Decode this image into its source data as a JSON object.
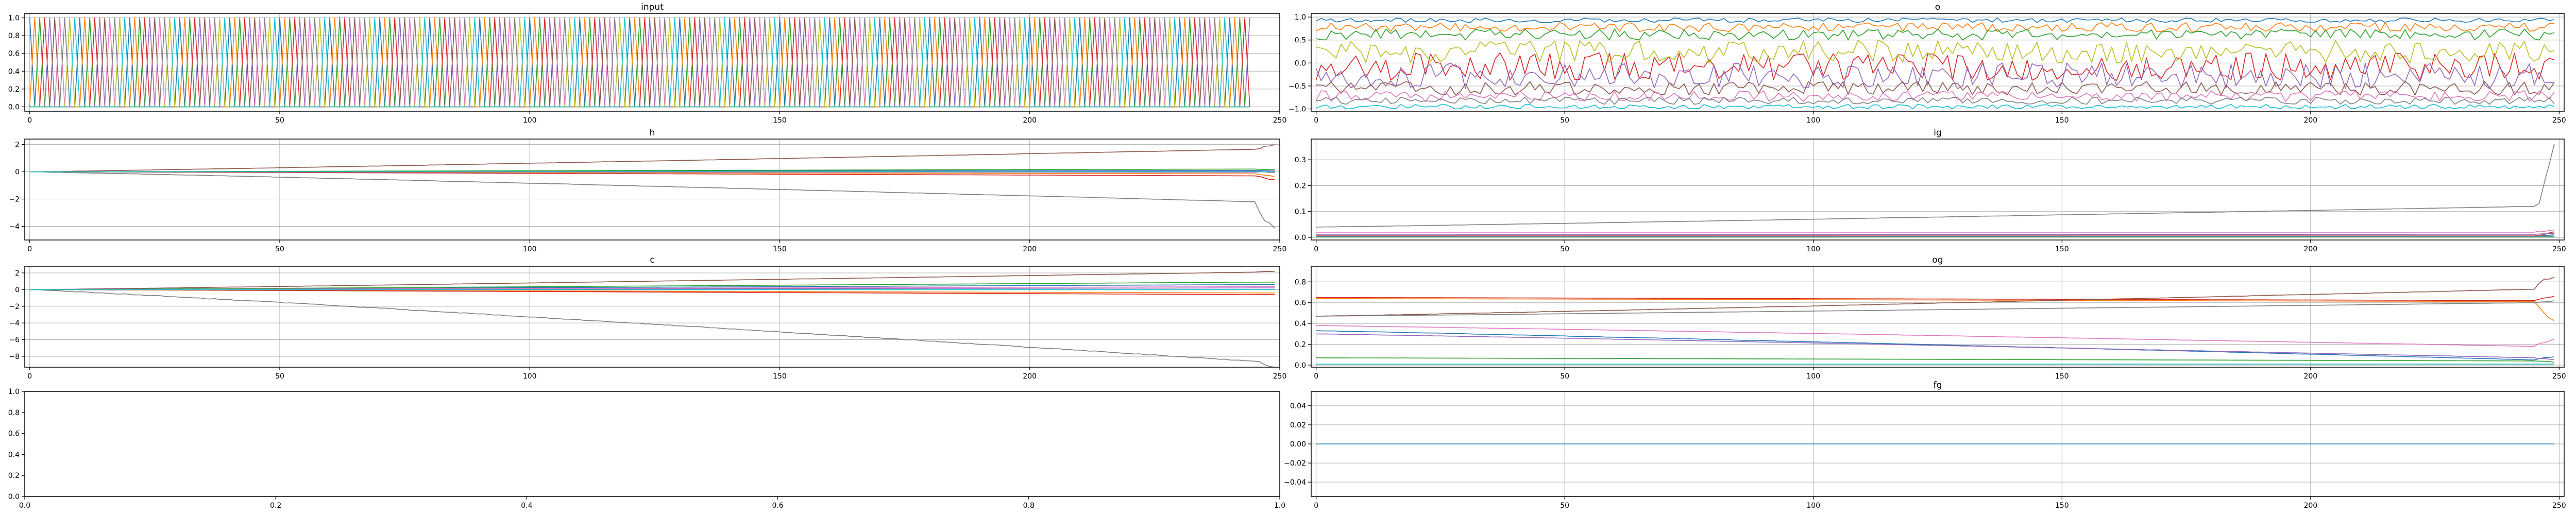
{
  "chart_data": [
    {
      "type": "line",
      "title": "input",
      "xlim": [
        -1,
        250
      ],
      "ylim": [
        -0.05,
        1.05
      ],
      "xticks": [
        "0",
        "50",
        "100",
        "150",
        "200",
        "250"
      ],
      "xtick_values": [
        0,
        50,
        100,
        150,
        200,
        250
      ],
      "yticks": [
        "0.0",
        "0.2",
        "0.4",
        "0.6",
        "0.8",
        "1.0"
      ],
      "ytick_values": [
        0,
        0.2,
        0.4,
        0.6,
        0.8,
        1.0
      ],
      "grid": true,
      "pattern": "binary",
      "n_series": 10,
      "n_points": 245,
      "series_colors": [
        "#1f77b4",
        "#ff7f0e",
        "#2ca02c",
        "#d62728",
        "#9467bd",
        "#8c564b",
        "#e377c2",
        "#7f7f7f",
        "#bcbd22",
        "#17becf"
      ]
    },
    {
      "type": "line",
      "title": "o",
      "xlim": [
        -1,
        251
      ],
      "ylim": [
        -1.05,
        1.08
      ],
      "xticks": [
        "0",
        "50",
        "100",
        "150",
        "200",
        "250"
      ],
      "xtick_values": [
        0,
        50,
        100,
        150,
        200,
        250
      ],
      "yticks": [
        "−1.0",
        "−0.5",
        "0.0",
        "0.5",
        "1.0"
      ],
      "ytick_values": [
        -1.0,
        -0.5,
        0.0,
        0.5,
        1.0
      ],
      "grid": true,
      "pattern": "noisy",
      "n_points": 250,
      "series_colors": [
        "#1f77b4",
        "#ff7f0e",
        "#2ca02c",
        "#d62728",
        "#9467bd",
        "#8c564b",
        "#e377c2",
        "#7f7f7f",
        "#bcbd22",
        "#17becf"
      ],
      "series_levels": [
        0.93,
        0.78,
        0.62,
        -0.08,
        -0.28,
        -0.55,
        -0.72,
        -0.82,
        0.25,
        -0.95
      ],
      "series_amplitudes": [
        0.05,
        0.1,
        0.12,
        0.3,
        0.28,
        0.15,
        0.12,
        0.08,
        0.25,
        0.05
      ]
    },
    {
      "type": "line",
      "title": "h",
      "xlim": [
        -1,
        250
      ],
      "ylim": [
        -5.0,
        2.4
      ],
      "xticks": [
        "0",
        "50",
        "100",
        "150",
        "200",
        "250"
      ],
      "xtick_values": [
        0,
        50,
        100,
        150,
        200,
        250
      ],
      "yticks": [
        "−4",
        "−2",
        "0",
        "2"
      ],
      "ytick_values": [
        -4,
        -2,
        0,
        2
      ],
      "grid": true,
      "pattern": "drift",
      "n_points": 250,
      "series_colors": [
        "#1f77b4",
        "#ff7f0e",
        "#2ca02c",
        "#d62728",
        "#9467bd",
        "#8c564b",
        "#e377c2",
        "#7f7f7f",
        "#bcbd22",
        "#17becf"
      ],
      "series_end_values": [
        0.1,
        -0.15,
        0.2,
        -0.3,
        0.05,
        1.65,
        -0.05,
        -2.2,
        0.0,
        0.0
      ],
      "series_final_values": [
        0.05,
        -0.35,
        0.15,
        -0.6,
        -0.05,
        2.0,
        0.1,
        -4.6,
        0.0,
        0.0
      ]
    },
    {
      "type": "line",
      "title": "ig",
      "xlim": [
        -1,
        251
      ],
      "ylim": [
        -0.01,
        0.38
      ],
      "xticks": [
        "0",
        "50",
        "100",
        "150",
        "200",
        "250"
      ],
      "xtick_values": [
        0,
        50,
        100,
        150,
        200,
        250
      ],
      "yticks": [
        "0.0",
        "0.1",
        "0.2",
        "0.3"
      ],
      "ytick_values": [
        0.0,
        0.1,
        0.2,
        0.3
      ],
      "grid": true,
      "pattern": "drift",
      "n_points": 250,
      "series_colors": [
        "#1f77b4",
        "#ff7f0e",
        "#2ca02c",
        "#d62728",
        "#9467bd",
        "#8c564b",
        "#e377c2",
        "#7f7f7f",
        "#bcbd22",
        "#17becf"
      ],
      "series_start_values": [
        0.003,
        0.002,
        0.004,
        0.006,
        0.01,
        0.003,
        0.02,
        0.04,
        0.001,
        0.002
      ],
      "series_end_values": [
        0.004,
        0.003,
        0.004,
        0.006,
        0.012,
        0.004,
        0.02,
        0.12,
        0.001,
        0.002
      ],
      "series_final_values": [
        0.01,
        0.005,
        0.004,
        0.02,
        0.015,
        0.005,
        0.03,
        0.34,
        0.001,
        0.002
      ]
    },
    {
      "type": "line",
      "title": "c",
      "xlim": [
        -1,
        250
      ],
      "ylim": [
        -9.3,
        2.8
      ],
      "xticks": [
        "0",
        "50",
        "100",
        "150",
        "200",
        "250"
      ],
      "xtick_values": [
        0,
        50,
        100,
        150,
        200,
        250
      ],
      "yticks": [
        "−8",
        "−6",
        "−4",
        "−2",
        "0",
        "2"
      ],
      "ytick_values": [
        -8,
        -6,
        -4,
        -2,
        0,
        2
      ],
      "grid": true,
      "pattern": "drift",
      "n_points": 250,
      "series_colors": [
        "#1f77b4",
        "#ff7f0e",
        "#2ca02c",
        "#d62728",
        "#9467bd",
        "#8c564b",
        "#e377c2",
        "#7f7f7f",
        "#bcbd22",
        "#17becf"
      ],
      "series_end_values": [
        0.6,
        -0.4,
        0.9,
        -0.6,
        0.2,
        2.1,
        0.35,
        -8.6,
        0.0,
        0.0
      ],
      "series_final_values": [
        0.6,
        -0.4,
        0.9,
        -0.6,
        0.2,
        2.2,
        0.35,
        -9.3,
        0.0,
        0.0
      ]
    },
    {
      "type": "line",
      "title": "og",
      "xlim": [
        -1,
        251
      ],
      "ylim": [
        -0.02,
        0.95
      ],
      "xticks": [
        "0",
        "50",
        "100",
        "150",
        "200",
        "250"
      ],
      "xtick_values": [
        0,
        50,
        100,
        150,
        200,
        250
      ],
      "yticks": [
        "0.0",
        "0.2",
        "0.4",
        "0.6",
        "0.8"
      ],
      "ytick_values": [
        0.0,
        0.2,
        0.4,
        0.6,
        0.8
      ],
      "grid": true,
      "pattern": "drift",
      "n_points": 250,
      "series_colors": [
        "#1f77b4",
        "#ff7f0e",
        "#2ca02c",
        "#d62728",
        "#9467bd",
        "#8c564b",
        "#e377c2",
        "#7f7f7f",
        "#bcbd22",
        "#17becf"
      ],
      "series_start_values": [
        0.33,
        0.64,
        0.07,
        0.65,
        0.3,
        0.47,
        0.38,
        0.47,
        0.01,
        0.01
      ],
      "series_end_values": [
        0.05,
        0.61,
        0.04,
        0.62,
        0.07,
        0.73,
        0.18,
        0.6,
        0.01,
        0.01
      ],
      "series_final_values": [
        0.08,
        0.4,
        0.03,
        0.66,
        0.05,
        0.87,
        0.25,
        0.62,
        0.01,
        0.01
      ]
    },
    {
      "type": "line",
      "title": "",
      "xlim": [
        0,
        1
      ],
      "ylim": [
        0,
        1
      ],
      "xticks": [
        "0.0",
        "0.2",
        "0.4",
        "0.6",
        "0.8",
        "1.0"
      ],
      "xtick_values": [
        0.0,
        0.2,
        0.4,
        0.6,
        0.8,
        1.0
      ],
      "yticks": [
        "0.0",
        "0.2",
        "0.4",
        "0.6",
        "0.8",
        "1.0"
      ],
      "ytick_values": [
        0.0,
        0.2,
        0.4,
        0.6,
        0.8,
        1.0
      ],
      "grid": false,
      "pattern": "empty"
    },
    {
      "type": "line",
      "title": "fg",
      "xlim": [
        -1,
        251
      ],
      "ylim": [
        -0.055,
        0.055
      ],
      "xticks": [
        "0",
        "50",
        "100",
        "150",
        "200",
        "250"
      ],
      "xtick_values": [
        0,
        50,
        100,
        150,
        200,
        250
      ],
      "yticks": [
        "−0.04",
        "−0.02",
        "0.00",
        "0.02",
        "0.04"
      ],
      "ytick_values": [
        -0.04,
        -0.02,
        0.0,
        0.02,
        0.04
      ],
      "grid": true,
      "pattern": "constant",
      "n_points": 250,
      "constant_value": 0.0,
      "series_colors": [
        "#1f77b4"
      ]
    }
  ]
}
